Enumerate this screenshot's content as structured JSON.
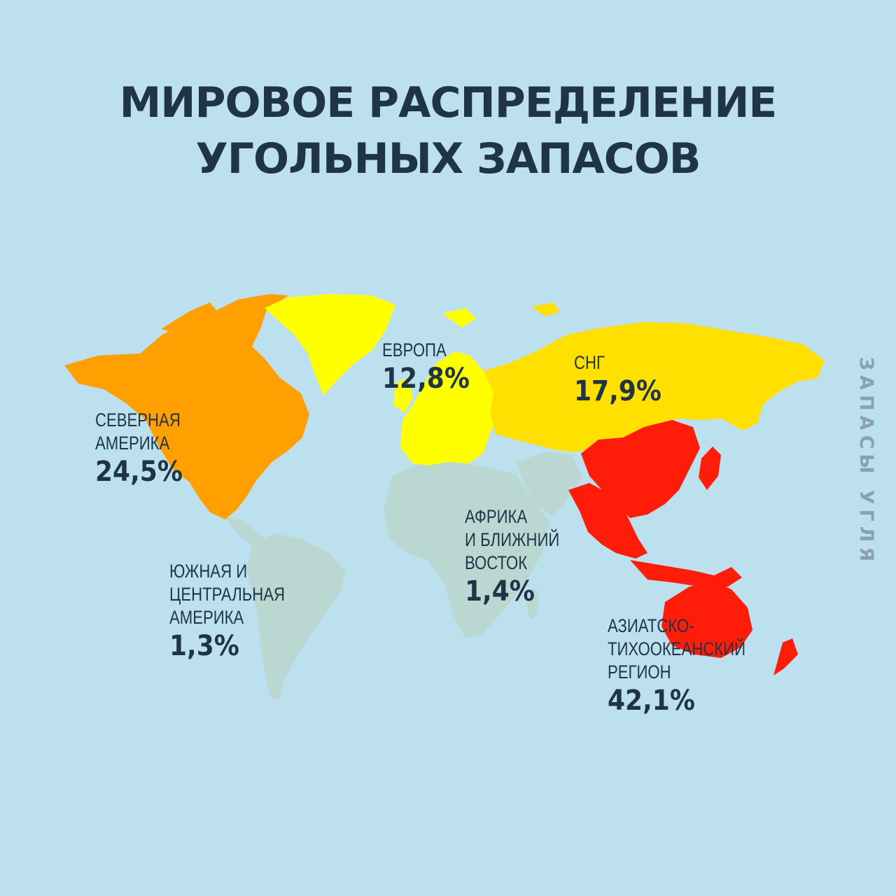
{
  "title": {
    "line1": "МИРОВОЕ РАСПРЕДЕЛЕНИЕ",
    "line2": "УГОЛЬНЫХ ЗАПАСОВ"
  },
  "side_caption": "ЗАПАСЫ УГЛЯ",
  "colors": {
    "background": "#bde0ee",
    "text": "#1f3545",
    "north_america": "#ff9f00",
    "europe": "#ffff00",
    "cis": "#ffe000",
    "asia_pacific": "#ff1d0a",
    "africa_mideast": "#bbd7d2",
    "south_america": "#bbd7d2"
  },
  "regions": [
    {
      "id": "north-america",
      "name_lines": [
        "СЕВЕРНАЯ",
        "АМЕРИКА"
      ],
      "percent": "24,5%",
      "value": 24.5
    },
    {
      "id": "europe",
      "name_lines": [
        "ЕВРОПА"
      ],
      "percent": "12,8%",
      "value": 12.8
    },
    {
      "id": "cis",
      "name_lines": [
        "СНГ"
      ],
      "percent": "17,9%",
      "value": 17.9
    },
    {
      "id": "africa-mideast",
      "name_lines": [
        "АФРИКА",
        "И БЛИЖНИЙ",
        "ВОСТОК"
      ],
      "percent": "1,4%",
      "value": 1.4
    },
    {
      "id": "south-central-america",
      "name_lines": [
        "ЮЖНАЯ И",
        "ЦЕНТРАЛЬНАЯ",
        "АМЕРИКА"
      ],
      "percent": "1,3%",
      "value": 1.3
    },
    {
      "id": "asia-pacific",
      "name_lines": [
        "АЗИАТСКО-",
        "ТИХООКЕАНСКИЙ",
        "РЕГИОН"
      ],
      "percent": "42,1%",
      "value": 42.1
    }
  ]
}
